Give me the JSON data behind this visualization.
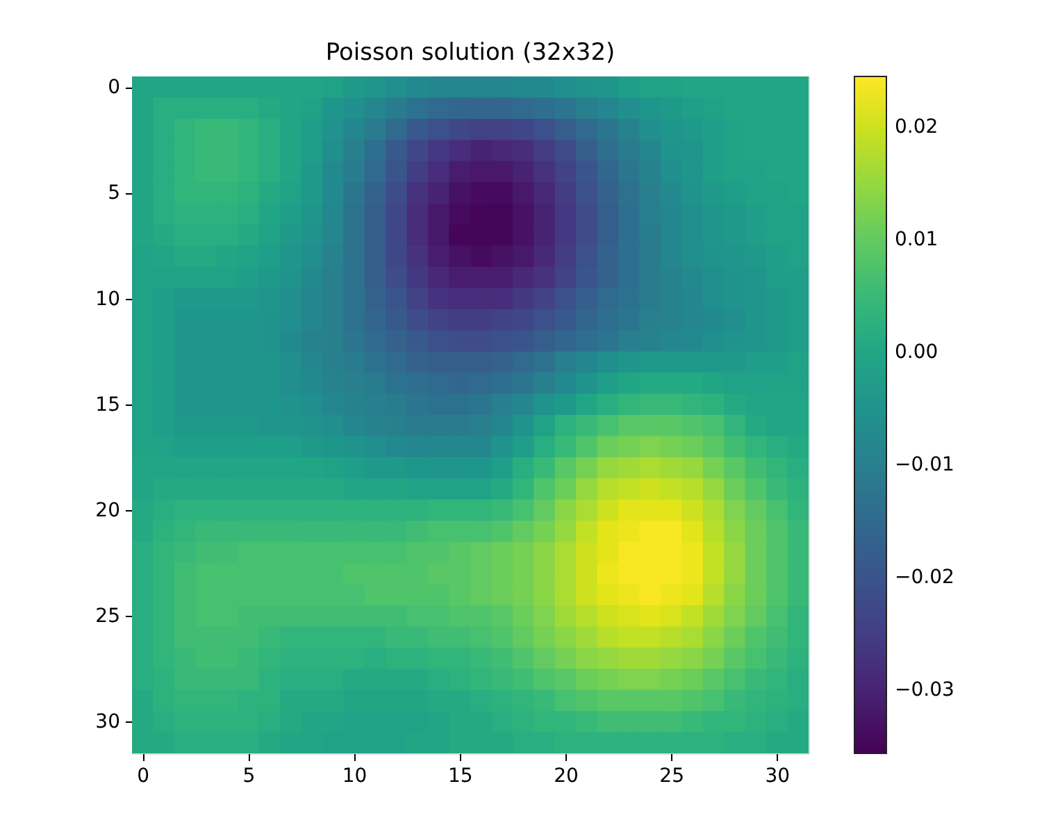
{
  "chart_data": {
    "type": "heatmap",
    "title": "Poisson solution (32x32)",
    "categories": [
      "0",
      null,
      null,
      null,
      null,
      "5",
      null,
      null,
      null,
      null,
      "10",
      null,
      null,
      null,
      null,
      "15",
      null,
      null,
      null,
      null,
      "20",
      null,
      null,
      null,
      null,
      "25",
      null,
      null,
      null,
      null,
      "30",
      null
    ],
    "y_categories": [
      "0",
      null,
      null,
      null,
      null,
      "5",
      null,
      null,
      null,
      null,
      "10",
      null,
      null,
      null,
      null,
      "15",
      null,
      null,
      null,
      null,
      "20",
      null,
      null,
      null,
      null,
      "25",
      null,
      null,
      null,
      null,
      "30",
      null
    ],
    "clim": [
      -0.0356,
      0.0245
    ],
    "cticks": [
      {
        "value": -0.03,
        "label": "−0.03"
      },
      {
        "value": -0.02,
        "label": "−0.02"
      },
      {
        "value": -0.01,
        "label": "−0.01"
      },
      {
        "value": 0,
        "label": "0.00"
      },
      0.01,
      0.02
    ],
    "cells": [
      [
        0,
        0,
        0,
        0,
        0,
        0,
        0,
        0,
        0,
        -0.001,
        -0.003,
        -0.004,
        -0.006,
        -0.007,
        -0.008,
        -0.008,
        -0.008,
        -0.008,
        -0.007,
        -0.007,
        -0.006,
        -0.005,
        -0.004,
        -0.002,
        -0.001,
        -0.001,
        0,
        0,
        0,
        0,
        0,
        0
      ],
      [
        0,
        0.002,
        0.002,
        0.002,
        0.002,
        0.002,
        0.001,
        0,
        -0.001,
        -0.004,
        -0.006,
        -0.008,
        -0.011,
        -0.013,
        -0.015,
        -0.016,
        -0.016,
        -0.016,
        -0.015,
        -0.014,
        -0.012,
        -0.01,
        -0.008,
        -0.006,
        -0.004,
        -0.003,
        -0.002,
        -0.001,
        0,
        0,
        0,
        0
      ],
      [
        0,
        0.002,
        0.004,
        0.005,
        0.005,
        0.004,
        0.002,
        0,
        -0.002,
        -0.005,
        -0.008,
        -0.011,
        -0.015,
        -0.019,
        -0.021,
        -0.023,
        -0.024,
        -0.024,
        -0.023,
        -0.021,
        -0.018,
        -0.015,
        -0.012,
        -0.009,
        -0.006,
        -0.004,
        -0.003,
        -0.002,
        -0.001,
        0,
        0,
        0
      ],
      [
        0,
        0.002,
        0.004,
        0.005,
        0.005,
        0.004,
        0.002,
        0,
        -0.002,
        -0.006,
        -0.01,
        -0.014,
        -0.019,
        -0.023,
        -0.026,
        -0.028,
        -0.03,
        -0.029,
        -0.028,
        -0.025,
        -0.022,
        -0.018,
        -0.014,
        -0.011,
        -0.008,
        -0.005,
        -0.004,
        -0.002,
        -0.001,
        0,
        0,
        0
      ],
      [
        0,
        0.002,
        0.004,
        0.005,
        0.005,
        0.004,
        0.002,
        0,
        -0.003,
        -0.007,
        -0.011,
        -0.015,
        -0.02,
        -0.025,
        -0.028,
        -0.031,
        -0.032,
        -0.032,
        -0.03,
        -0.027,
        -0.024,
        -0.02,
        -0.016,
        -0.012,
        -0.009,
        -0.006,
        -0.004,
        -0.002,
        -0.001,
        -0.001,
        0,
        0
      ],
      [
        0,
        0.002,
        0.004,
        0.004,
        0.004,
        0.003,
        0.001,
        -0.001,
        -0.003,
        -0.007,
        -0.012,
        -0.017,
        -0.022,
        -0.027,
        -0.03,
        -0.033,
        -0.034,
        -0.034,
        -0.032,
        -0.029,
        -0.025,
        -0.021,
        -0.017,
        -0.013,
        -0.01,
        -0.007,
        -0.005,
        -0.003,
        -0.002,
        -0.001,
        -0.001,
        0
      ],
      [
        0,
        0.002,
        0.003,
        0.003,
        0.003,
        0.002,
        0,
        -0.002,
        -0.004,
        -0.008,
        -0.013,
        -0.018,
        -0.023,
        -0.028,
        -0.032,
        -0.034,
        -0.035,
        -0.035,
        -0.033,
        -0.03,
        -0.026,
        -0.022,
        -0.018,
        -0.014,
        -0.01,
        -0.008,
        -0.006,
        -0.004,
        -0.003,
        -0.002,
        -0.001,
        -0.001
      ],
      [
        0,
        0.001,
        0.002,
        0.002,
        0.002,
        0.001,
        -0.001,
        -0.003,
        -0.005,
        -0.008,
        -0.013,
        -0.018,
        -0.023,
        -0.028,
        -0.032,
        -0.035,
        -0.035,
        -0.035,
        -0.033,
        -0.03,
        -0.026,
        -0.022,
        -0.018,
        -0.014,
        -0.011,
        -0.008,
        -0.006,
        -0.004,
        -0.003,
        -0.002,
        -0.001,
        -0.001
      ],
      [
        -0.001,
        0,
        0.001,
        0.001,
        0,
        -0.001,
        -0.002,
        -0.004,
        -0.006,
        -0.009,
        -0.013,
        -0.018,
        -0.023,
        -0.027,
        -0.031,
        -0.033,
        -0.034,
        -0.033,
        -0.032,
        -0.029,
        -0.025,
        -0.021,
        -0.017,
        -0.014,
        -0.011,
        -0.008,
        -0.006,
        -0.005,
        -0.004,
        -0.003,
        -0.002,
        -0.001
      ],
      [
        -0.001,
        -0.001,
        -0.001,
        -0.001,
        -0.001,
        -0.002,
        -0.003,
        -0.005,
        -0.007,
        -0.01,
        -0.013,
        -0.018,
        -0.022,
        -0.026,
        -0.029,
        -0.031,
        -0.031,
        -0.031,
        -0.029,
        -0.027,
        -0.024,
        -0.02,
        -0.017,
        -0.014,
        -0.011,
        -0.009,
        -0.007,
        -0.006,
        -0.005,
        -0.004,
        -0.002,
        -0.002
      ],
      [
        -0.001,
        -0.002,
        -0.003,
        -0.003,
        -0.003,
        -0.003,
        -0.004,
        -0.006,
        -0.008,
        -0.01,
        -0.013,
        -0.017,
        -0.02,
        -0.024,
        -0.027,
        -0.028,
        -0.028,
        -0.028,
        -0.026,
        -0.024,
        -0.021,
        -0.018,
        -0.015,
        -0.013,
        -0.011,
        -0.009,
        -0.008,
        -0.006,
        -0.005,
        -0.004,
        -0.003,
        -0.002
      ],
      [
        -0.001,
        -0.002,
        -0.004,
        -0.004,
        -0.004,
        -0.004,
        -0.005,
        -0.006,
        -0.008,
        -0.01,
        -0.013,
        -0.016,
        -0.019,
        -0.022,
        -0.024,
        -0.025,
        -0.025,
        -0.024,
        -0.023,
        -0.021,
        -0.019,
        -0.016,
        -0.014,
        -0.012,
        -0.01,
        -0.009,
        -0.008,
        -0.007,
        -0.006,
        -0.004,
        -0.003,
        -0.002
      ],
      [
        -0.001,
        -0.002,
        -0.004,
        -0.004,
        -0.004,
        -0.004,
        -0.005,
        -0.007,
        -0.009,
        -0.01,
        -0.012,
        -0.015,
        -0.017,
        -0.019,
        -0.021,
        -0.022,
        -0.022,
        -0.021,
        -0.02,
        -0.018,
        -0.016,
        -0.014,
        -0.012,
        -0.01,
        -0.009,
        -0.008,
        -0.007,
        -0.006,
        -0.005,
        -0.004,
        -0.003,
        -0.002
      ],
      [
        -0.001,
        -0.002,
        -0.004,
        -0.004,
        -0.004,
        -0.004,
        -0.004,
        -0.006,
        -0.008,
        -0.01,
        -0.011,
        -0.013,
        -0.015,
        -0.017,
        -0.018,
        -0.018,
        -0.018,
        -0.017,
        -0.015,
        -0.013,
        -0.01,
        -0.008,
        -0.006,
        -0.004,
        -0.003,
        -0.003,
        -0.003,
        -0.003,
        -0.003,
        -0.002,
        -0.002,
        -0.001
      ],
      [
        -0.001,
        -0.002,
        -0.004,
        -0.004,
        -0.004,
        -0.004,
        -0.004,
        -0.006,
        -0.007,
        -0.009,
        -0.01,
        -0.011,
        -0.013,
        -0.014,
        -0.015,
        -0.016,
        -0.015,
        -0.014,
        -0.012,
        -0.01,
        -0.007,
        -0.005,
        -0.002,
        0,
        0.001,
        0.001,
        0.001,
        0,
        -0.001,
        -0.001,
        -0.001,
        -0.001
      ],
      [
        -0.001,
        -0.002,
        -0.004,
        -0.004,
        -0.004,
        -0.004,
        -0.004,
        -0.005,
        -0.006,
        -0.008,
        -0.009,
        -0.01,
        -0.011,
        -0.012,
        -0.013,
        -0.013,
        -0.012,
        -0.01,
        -0.008,
        -0.005,
        -0.003,
        0,
        0.002,
        0.004,
        0.005,
        0.005,
        0.004,
        0.003,
        0.001,
        0,
        0,
        0
      ],
      [
        -0.001,
        -0.002,
        -0.003,
        -0.003,
        -0.003,
        -0.003,
        -0.004,
        -0.004,
        -0.005,
        -0.006,
        -0.008,
        -0.009,
        -0.01,
        -0.011,
        -0.011,
        -0.011,
        -0.01,
        -0.008,
        -0.005,
        -0.001,
        0.003,
        0.005,
        0.007,
        0.009,
        0.009,
        0.009,
        0.008,
        0.007,
        0.004,
        0.001,
        0,
        0
      ],
      [
        -0.001,
        -0.001,
        -0.002,
        -0.002,
        -0.002,
        -0.002,
        -0.002,
        -0.002,
        -0.003,
        -0.004,
        -0.005,
        -0.006,
        -0.007,
        -0.008,
        -0.008,
        -0.008,
        -0.008,
        -0.005,
        -0.002,
        0.002,
        0.005,
        0.008,
        0.011,
        0.012,
        0.013,
        0.012,
        0.011,
        0.009,
        0.006,
        0.004,
        0.002,
        0.001
      ],
      [
        0,
        0,
        0,
        0,
        0,
        0,
        0,
        0,
        0,
        -0.001,
        -0.002,
        -0.003,
        -0.003,
        -0.004,
        -0.004,
        -0.004,
        -0.004,
        -0.002,
        0.002,
        0.005,
        0.009,
        0.012,
        0.015,
        0.016,
        0.017,
        0.016,
        0.015,
        0.012,
        0.009,
        0.006,
        0.004,
        0.002
      ],
      [
        0,
        0.001,
        0.001,
        0.001,
        0.001,
        0.001,
        0.001,
        0.001,
        0.001,
        0.001,
        0,
        0,
        0,
        -0.001,
        -0.001,
        -0.001,
        -0.001,
        0.001,
        0.004,
        0.008,
        0.011,
        0.015,
        0.018,
        0.019,
        0.02,
        0.019,
        0.018,
        0.015,
        0.011,
        0.008,
        0.005,
        0.003
      ],
      [
        0.001,
        0.002,
        0.003,
        0.003,
        0.003,
        0.003,
        0.003,
        0.003,
        0.003,
        0.003,
        0.003,
        0.003,
        0.003,
        0.003,
        0.004,
        0.004,
        0.004,
        0.005,
        0.007,
        0.01,
        0.014,
        0.017,
        0.02,
        0.022,
        0.022,
        0.022,
        0.02,
        0.017,
        0.013,
        0.01,
        0.007,
        0.004
      ],
      [
        0.001,
        0.003,
        0.004,
        0.005,
        0.005,
        0.005,
        0.005,
        0.005,
        0.005,
        0.005,
        0.005,
        0.005,
        0.005,
        0.006,
        0.007,
        0.007,
        0.007,
        0.008,
        0.01,
        0.012,
        0.015,
        0.019,
        0.022,
        0.023,
        0.024,
        0.024,
        0.022,
        0.018,
        0.014,
        0.011,
        0.008,
        0.005
      ],
      [
        0.002,
        0.004,
        0.005,
        0.006,
        0.006,
        0.007,
        0.007,
        0.007,
        0.007,
        0.007,
        0.007,
        0.007,
        0.007,
        0.008,
        0.008,
        0.009,
        0.01,
        0.011,
        0.012,
        0.014,
        0.017,
        0.02,
        0.022,
        0.024,
        0.024,
        0.024,
        0.023,
        0.019,
        0.015,
        0.011,
        0.008,
        0.005
      ],
      [
        0.002,
        0.004,
        0.006,
        0.007,
        0.007,
        0.007,
        0.007,
        0.007,
        0.007,
        0.007,
        0.008,
        0.008,
        0.008,
        0.008,
        0.009,
        0.009,
        0.01,
        0.011,
        0.012,
        0.014,
        0.017,
        0.02,
        0.023,
        0.024,
        0.024,
        0.024,
        0.023,
        0.019,
        0.015,
        0.011,
        0.008,
        0.005
      ],
      [
        0.002,
        0.004,
        0.006,
        0.007,
        0.007,
        0.007,
        0.007,
        0.007,
        0.007,
        0.007,
        0.007,
        0.008,
        0.008,
        0.008,
        0.008,
        0.009,
        0.01,
        0.011,
        0.012,
        0.014,
        0.017,
        0.02,
        0.022,
        0.023,
        0.024,
        0.023,
        0.022,
        0.018,
        0.014,
        0.011,
        0.008,
        0.005
      ],
      [
        0.002,
        0.004,
        0.006,
        0.007,
        0.007,
        0.006,
        0.006,
        0.006,
        0.006,
        0.006,
        0.006,
        0.006,
        0.006,
        0.007,
        0.007,
        0.008,
        0.008,
        0.009,
        0.011,
        0.013,
        0.016,
        0.018,
        0.02,
        0.021,
        0.022,
        0.021,
        0.019,
        0.016,
        0.013,
        0.01,
        0.007,
        0.004
      ],
      [
        0.002,
        0.004,
        0.006,
        0.006,
        0.006,
        0.006,
        0.005,
        0.004,
        0.004,
        0.004,
        0.004,
        0.004,
        0.005,
        0.005,
        0.006,
        0.006,
        0.007,
        0.008,
        0.01,
        0.012,
        0.014,
        0.016,
        0.018,
        0.019,
        0.019,
        0.018,
        0.017,
        0.014,
        0.011,
        0.008,
        0.006,
        0.004
      ],
      [
        0.002,
        0.004,
        0.005,
        0.006,
        0.006,
        0.005,
        0.004,
        0.003,
        0.003,
        0.003,
        0.003,
        0.002,
        0.003,
        0.003,
        0.004,
        0.004,
        0.005,
        0.006,
        0.008,
        0.01,
        0.012,
        0.014,
        0.015,
        0.016,
        0.016,
        0.015,
        0.014,
        0.012,
        0.009,
        0.007,
        0.005,
        0.003
      ],
      [
        0.002,
        0.003,
        0.005,
        0.005,
        0.005,
        0.005,
        0.003,
        0.002,
        0.002,
        0.002,
        0.001,
        0.001,
        0.001,
        0.001,
        0.002,
        0.003,
        0.004,
        0.005,
        0.006,
        0.008,
        0.009,
        0.011,
        0.012,
        0.013,
        0.013,
        0.012,
        0.011,
        0.009,
        0.007,
        0.005,
        0.004,
        0.002
      ],
      [
        0.001,
        0.003,
        0.004,
        0.004,
        0.004,
        0.003,
        0.003,
        0.001,
        0.001,
        0.001,
        0,
        0,
        0,
        0,
        0.001,
        0.001,
        0.002,
        0.003,
        0.004,
        0.005,
        0.007,
        0.008,
        0.009,
        0.009,
        0.009,
        0.009,
        0.008,
        0.007,
        0.005,
        0.004,
        0.003,
        0.002
      ],
      [
        0.001,
        0.002,
        0.003,
        0.003,
        0.003,
        0.003,
        0.002,
        0.001,
        0,
        0,
        -0.001,
        -0.001,
        -0.001,
        -0.001,
        0,
        0.001,
        0.001,
        0.002,
        0.003,
        0.004,
        0.004,
        0.005,
        0.006,
        0.006,
        0.006,
        0.006,
        0.005,
        0.004,
        0.004,
        0.003,
        0.002,
        0.001
      ],
      [
        0.001,
        0.001,
        0.002,
        0.002,
        0.002,
        0.002,
        0.001,
        0,
        0,
        -0.001,
        -0.001,
        -0.001,
        -0.001,
        0,
        0,
        0.001,
        0.001,
        0.001,
        0.002,
        0.002,
        0.003,
        0.003,
        0.003,
        0.003,
        0.003,
        0.003,
        0.003,
        0.003,
        0.002,
        0.002,
        0.001,
        0.001
      ]
    ]
  }
}
